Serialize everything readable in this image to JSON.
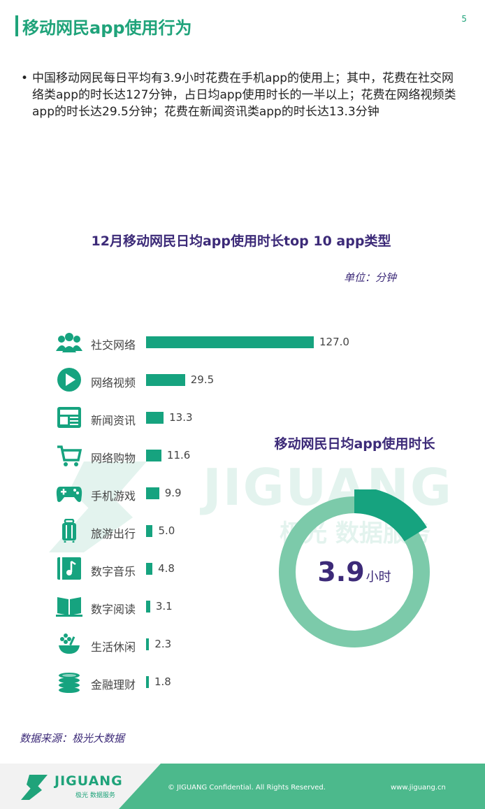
{
  "header": {
    "title": "移动网民app使用行为",
    "page_number": "5"
  },
  "bullet_text": "中国移动网民每日平均有3.9小时花费在手机app的使用上；其中，花费在社交网络类app的时长达127分钟，占日均app使用时长的一半以上；花费在网络视频类app的时长达29.5分钟；花费在新闻资讯类app的时长达13.3分钟",
  "chart_data": [
    {
      "type": "bar",
      "orientation": "horizontal",
      "title": "12月移动网民日均app使用时长top 10 app类型",
      "unit_label": "单位：分钟",
      "categories": [
        "社交网络",
        "网络视频",
        "新闻资讯",
        "网络购物",
        "手机游戏",
        "旅游出行",
        "数字音乐",
        "数字阅读",
        "生活休闲",
        "金融理财"
      ],
      "values": [
        127.0,
        29.5,
        13.3,
        11.6,
        9.9,
        5.0,
        4.8,
        3.1,
        2.3,
        1.8
      ],
      "value_labels": [
        "127.0",
        "29.5",
        "13.3",
        "11.6",
        "9.9",
        "5.0",
        "4.8",
        "3.1",
        "2.3",
        "1.8"
      ],
      "icons": [
        "people-icon",
        "play-icon",
        "news-icon",
        "cart-icon",
        "gamepad-icon",
        "luggage-icon",
        "music-icon",
        "book-icon",
        "leisure-icon",
        "coins-icon"
      ],
      "bar_color": "#16a37f"
    },
    {
      "type": "pie",
      "style": "donut",
      "title": "移动网民日均app使用时长",
      "center_value": "3.9",
      "center_unit": "小时",
      "total_hours": 24,
      "value_hours": 3.9,
      "colors": {
        "ring": "#7ccaaa",
        "highlight": "#16a37f"
      }
    }
  ],
  "source": "数据来源：极光大数据",
  "watermark": {
    "text": "JIGUANG",
    "sub": "极光 数据服务"
  },
  "footer": {
    "logo_text": "JIGUANG",
    "logo_sub": "极光 数据服务",
    "copyright": "© JIGUANG Confidential. All Rights Reserved.",
    "url": "www.jiguang.cn"
  },
  "colors": {
    "accent": "#1fa37a",
    "title_purple": "#3c2a78"
  }
}
